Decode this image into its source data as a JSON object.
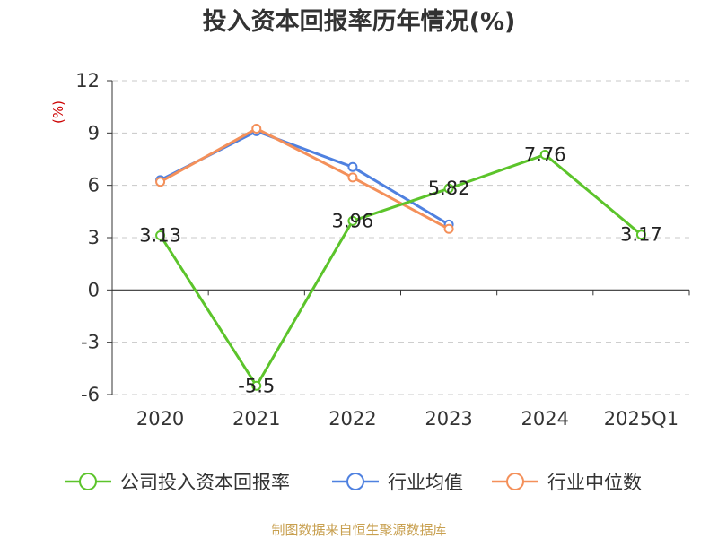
{
  "chart_data": {
    "type": "line",
    "title": "投入资本回报率历年情况(%)",
    "ylabel": "(%)",
    "xlabel": "",
    "categories": [
      "2020",
      "2021",
      "2022",
      "2023",
      "2024",
      "2025Q1"
    ],
    "ylim": [
      -6,
      12
    ],
    "yticks": [
      12,
      9,
      6,
      3,
      0,
      -3,
      -6
    ],
    "grid": true,
    "legend_position": "bottom",
    "series": [
      {
        "name": "公司投入资本回报率",
        "color": "#5cc42b",
        "values": [
          3.13,
          -5.5,
          3.96,
          5.82,
          7.76,
          3.17
        ],
        "data_labels": [
          "3.13",
          "-5.5",
          "3.96",
          "5.82",
          "7.76",
          "3.17"
        ]
      },
      {
        "name": "行业均值",
        "color": "#4f81e0",
        "values": [
          6.3,
          9.1,
          7.05,
          3.75,
          null,
          null
        ]
      },
      {
        "name": "行业中位数",
        "color": "#f4905a",
        "values": [
          6.2,
          9.25,
          6.45,
          3.5,
          null,
          null
        ]
      }
    ]
  },
  "footer": {
    "source": "制图数据来自恒生聚源数据库"
  }
}
